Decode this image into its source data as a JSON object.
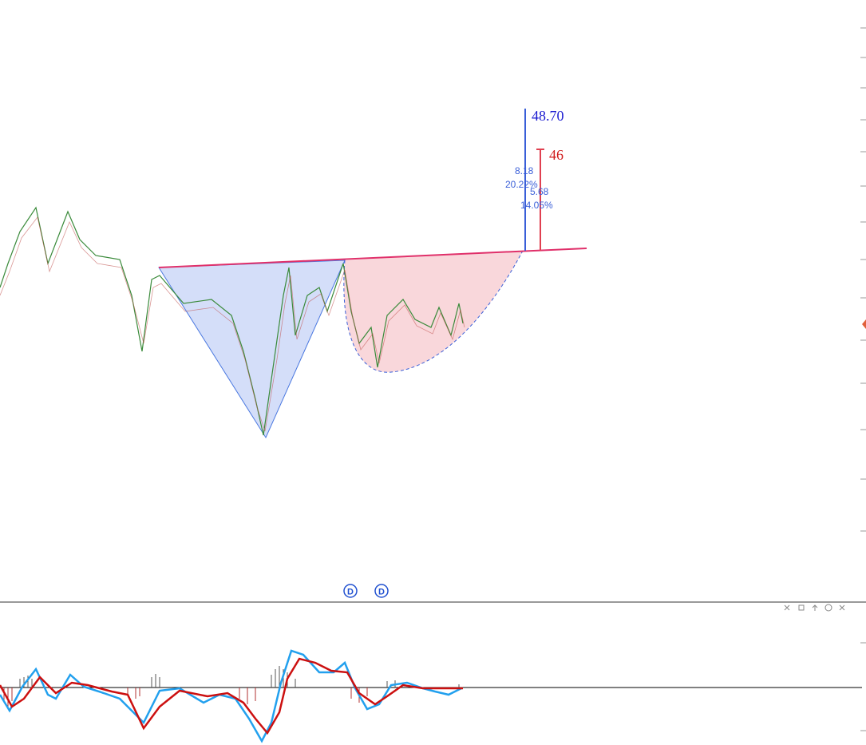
{
  "annotations": {
    "target_high": "48.70",
    "target_low": "46",
    "high_diff": "8.18",
    "high_pct": "20.22%",
    "low_diff": "5.68",
    "low_pct": "14.05%"
  },
  "markers": [
    "D",
    "D"
  ]
}
